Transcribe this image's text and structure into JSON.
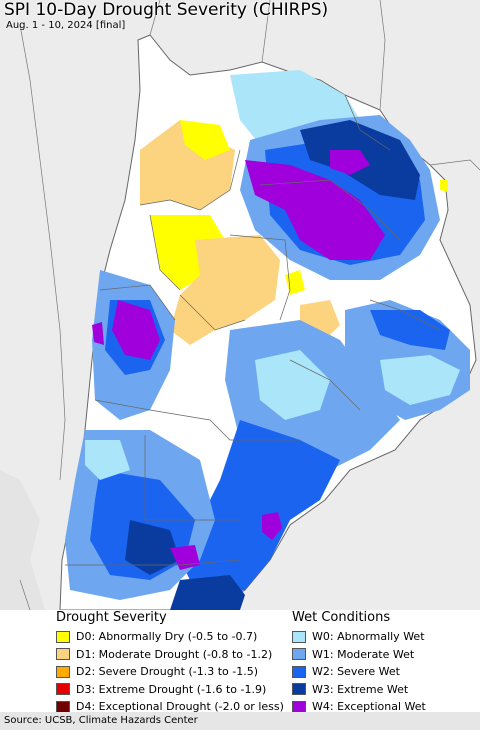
{
  "header": {
    "title": "SPI 10-Day Drought Severity (CHIRPS)",
    "subtitle": "Aug. 1 - 10, 2024 [final]"
  },
  "legend": {
    "drought_heading": "Drought Severity",
    "wet_heading": "Wet Conditions",
    "drought_items": [
      {
        "label": "D0: Abnormally Dry (-0.5 to -0.7)",
        "color": "#ffff00"
      },
      {
        "label": "D1: Moderate Drought (-0.8 to -1.2)",
        "color": "#fcd37f"
      },
      {
        "label": "D2: Severe Drought (-1.3 to -1.5)",
        "color": "#ffaa00"
      },
      {
        "label": "D3: Extreme Drought (-1.6 to -1.9)",
        "color": "#e60000"
      },
      {
        "label": "D4: Exceptional Drought (-2.0 or less)",
        "color": "#730000"
      }
    ],
    "wet_items": [
      {
        "label": "W0: Abnormally Wet",
        "color": "#aae5fa"
      },
      {
        "label": "W1: Moderate Wet",
        "color": "#6ea7f0"
      },
      {
        "label": "W2: Severe Wet",
        "color": "#1a64f0"
      },
      {
        "label": "W3: Extreme Wet",
        "color": "#0a3ca0"
      },
      {
        "label": "W4: Exceptional Wet",
        "color": "#a000dc"
      }
    ]
  },
  "footer": {
    "source": "Source: UCSB, Climate Hazards Center"
  },
  "colors": {
    "outside_region": "#ececec",
    "no_anomaly": "#ffffff",
    "border": "#666666"
  }
}
